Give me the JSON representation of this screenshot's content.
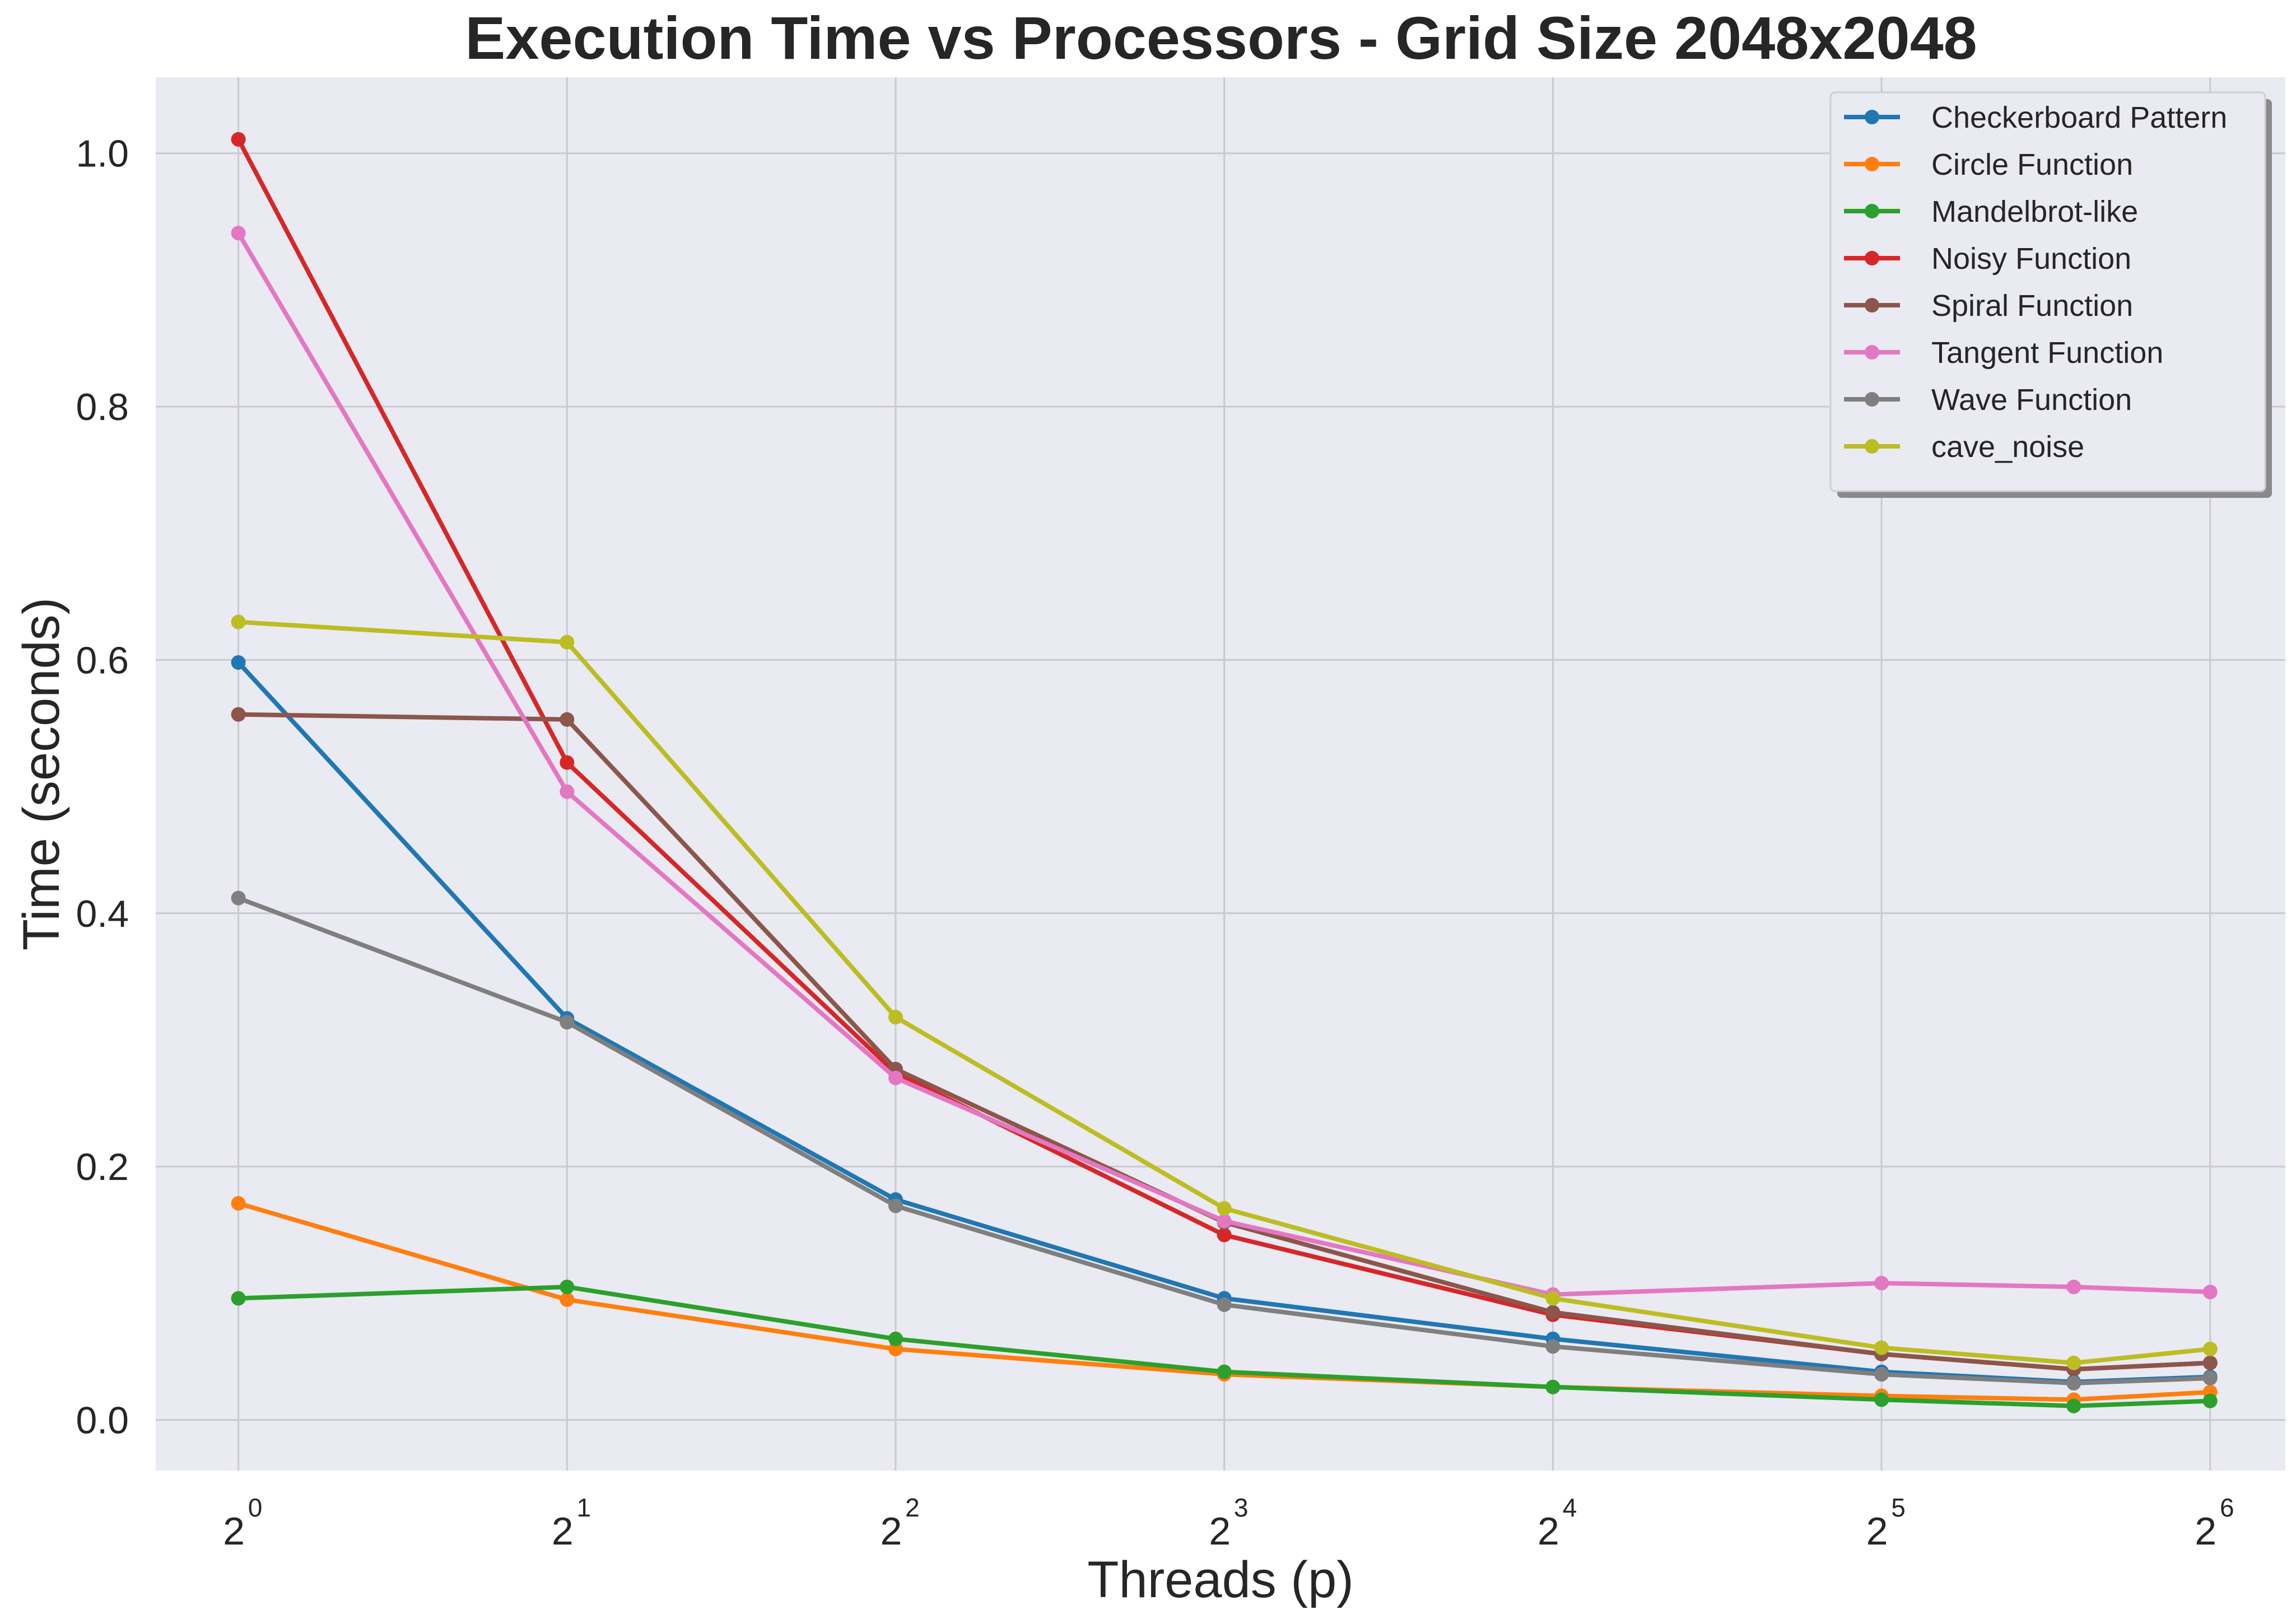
{
  "chart_data": {
    "type": "line",
    "title": "Execution Time vs Processors - Grid Size 2048x2048",
    "xlabel": "Threads (p)",
    "ylabel": "Time (seconds)",
    "x_scale": "log2",
    "xlim": [
      0.84,
      75
    ],
    "ylim": [
      -0.04,
      1.06
    ],
    "x_ticks": [
      1,
      2,
      4,
      8,
      16,
      32,
      64
    ],
    "x_tick_labels": [
      {
        "base": "2",
        "exp": "0"
      },
      {
        "base": "2",
        "exp": "1"
      },
      {
        "base": "2",
        "exp": "2"
      },
      {
        "base": "2",
        "exp": "3"
      },
      {
        "base": "2",
        "exp": "4"
      },
      {
        "base": "2",
        "exp": "5"
      },
      {
        "base": "2",
        "exp": "6"
      }
    ],
    "y_ticks": [
      0.0,
      0.2,
      0.4,
      0.6,
      0.8,
      1.0
    ],
    "y_tick_labels": [
      "0.0",
      "0.2",
      "0.4",
      "0.6",
      "0.8",
      "1.0"
    ],
    "grid": true,
    "legend_position": "top-right",
    "x": [
      1,
      2,
      4,
      8,
      16,
      32,
      48,
      64
    ],
    "series": [
      {
        "name": "Checkerboard Pattern",
        "color": "#1f77b4",
        "values": [
          0.598,
          0.317,
          0.174,
          0.096,
          0.064,
          0.038,
          0.03,
          0.034
        ]
      },
      {
        "name": "Circle Function",
        "color": "#ff7f0e",
        "values": [
          0.171,
          0.095,
          0.056,
          0.036,
          0.026,
          0.019,
          0.016,
          0.022
        ]
      },
      {
        "name": "Mandelbrot-like",
        "color": "#2ca02c",
        "values": [
          0.096,
          0.105,
          0.064,
          0.038,
          0.026,
          0.016,
          0.011,
          0.015
        ]
      },
      {
        "name": "Noisy Function",
        "color": "#d62728",
        "values": [
          1.011,
          0.519,
          0.274,
          0.146,
          0.083,
          0.052,
          0.04,
          0.045
        ]
      },
      {
        "name": "Spiral Function",
        "color": "#8c564b",
        "values": [
          0.557,
          0.553,
          0.277,
          0.156,
          0.085,
          0.052,
          0.04,
          0.045
        ]
      },
      {
        "name": "Tangent Function",
        "color": "#e377c2",
        "values": [
          0.937,
          0.496,
          0.27,
          0.157,
          0.099,
          0.108,
          0.105,
          0.101
        ]
      },
      {
        "name": "Wave Function",
        "color": "#7f7f7f",
        "values": [
          0.412,
          0.314,
          0.169,
          0.091,
          0.058,
          0.036,
          0.029,
          0.033
        ]
      },
      {
        "name": "cave_noise",
        "color": "#bcbd22",
        "values": [
          0.63,
          0.614,
          0.318,
          0.167,
          0.096,
          0.057,
          0.045,
          0.056
        ]
      }
    ]
  }
}
